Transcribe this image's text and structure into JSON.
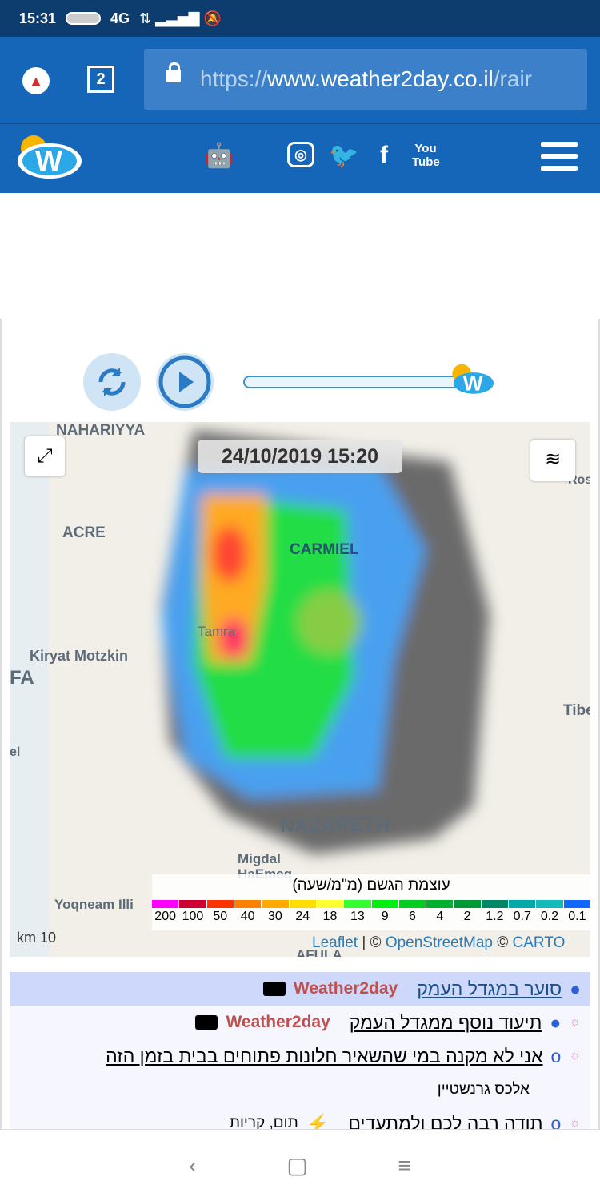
{
  "status": {
    "time": "15:31",
    "network": "4G"
  },
  "browser": {
    "tab_count": "2",
    "url_scheme": "https://",
    "url_host": "www.weather2day.co.il",
    "url_path": "/rair"
  },
  "nav": {
    "social": [
      "android-icon",
      "apple-icon",
      "instagram-icon",
      "twitter-icon",
      "facebook-icon",
      "youtube-icon"
    ],
    "youtube_label": "You Tube"
  },
  "map": {
    "timestamp": "24/10/2019 15:20",
    "labels": [
      "NAHARIYYA",
      "ACRE",
      "CARMIEL",
      "Tamra",
      "Kiryat Motzkin",
      "FA",
      "el",
      "Tibe",
      "Ros",
      "NAZARETH",
      "Migdal HaEmeq",
      "Yoqneam Illi",
      "AFULA"
    ],
    "scale": "10 km",
    "legend": {
      "title": "עוצמת הגשם (מ\"מ/שעה)",
      "items": [
        {
          "v": "200",
          "c": "#ff00ff"
        },
        {
          "v": "100",
          "c": "#cc0033"
        },
        {
          "v": "50",
          "c": "#ff3300"
        },
        {
          "v": "40",
          "c": "#ff7f00"
        },
        {
          "v": "30",
          "c": "#ffaa00"
        },
        {
          "v": "24",
          "c": "#ffdd00"
        },
        {
          "v": "18",
          "c": "#ffff33"
        },
        {
          "v": "13",
          "c": "#33ff33"
        },
        {
          "v": "9",
          "c": "#00ee11"
        },
        {
          "v": "6",
          "c": "#00cc22"
        },
        {
          "v": "4",
          "c": "#00b030"
        },
        {
          "v": "2",
          "c": "#009933"
        },
        {
          "v": "1.2",
          "c": "#008866"
        },
        {
          "v": "0.7",
          "c": "#00aaaa"
        },
        {
          "v": "0.2",
          "c": "#11bbbb"
        },
        {
          "v": "0.1",
          "c": "#1166ff"
        }
      ]
    },
    "attribution": {
      "leaflet": "Leaflet",
      "osm": "OpenStreetMap",
      "carto": "CARTO"
    }
  },
  "news": [
    {
      "title": "סוער במגדל העמק",
      "author": "Weather2day",
      "video": true
    },
    {
      "title": "תיעוד נוסף ממגדל העמק",
      "author": "Weather2day",
      "video": true
    },
    {
      "title": "אני לא מקנה במי שהשאיר חלונות פתוחים בבית בזמן הזה",
      "author": "אלכס גרנשטיין"
    },
    {
      "title": "תודה רבה לכם ולמתעדים",
      "author": "תום, קריות"
    }
  ]
}
